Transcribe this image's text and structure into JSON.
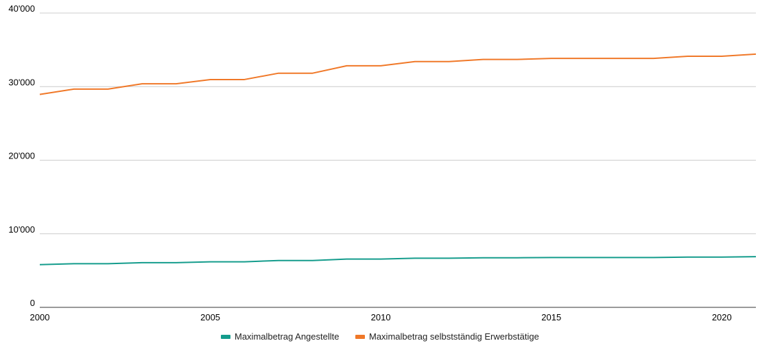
{
  "chart_data": {
    "type": "line",
    "title": "",
    "xlabel": "",
    "ylabel": "",
    "x": [
      2000,
      2001,
      2002,
      2003,
      2004,
      2005,
      2006,
      2007,
      2008,
      2009,
      2010,
      2011,
      2012,
      2013,
      2014,
      2015,
      2016,
      2017,
      2018,
      2019,
      2020,
      2021
    ],
    "series": [
      {
        "name": "Maximalbetrag Angestellte",
        "color": "#149c8c",
        "values": [
          5803,
          5933,
          5933,
          6077,
          6077,
          6192,
          6192,
          6365,
          6365,
          6566,
          6566,
          6682,
          6682,
          6739,
          6739,
          6768,
          6768,
          6768,
          6768,
          6826,
          6826,
          6883
        ]
      },
      {
        "name": "Maximalbetrag selbstständig Erwerbstätige",
        "color": "#f07828",
        "values": [
          28944,
          29664,
          29664,
          30384,
          30384,
          30960,
          30960,
          31824,
          31824,
          32832,
          32832,
          33408,
          33408,
          33696,
          33696,
          33840,
          33840,
          33840,
          33840,
          34128,
          34128,
          34416
        ]
      }
    ],
    "ylim": [
      0,
      40000
    ],
    "xlim": [
      2000,
      2021
    ],
    "y_ticks": [
      0,
      10000,
      20000,
      30000,
      40000
    ],
    "y_tick_labels": [
      "0",
      "10'000",
      "20'000",
      "30'000",
      "40'000"
    ],
    "x_ticks": [
      2000,
      2005,
      2010,
      2015,
      2020
    ],
    "x_tick_labels": [
      "2000",
      "2005",
      "2010",
      "2015",
      "2020"
    ],
    "grid": true,
    "legend_position": "bottom"
  }
}
